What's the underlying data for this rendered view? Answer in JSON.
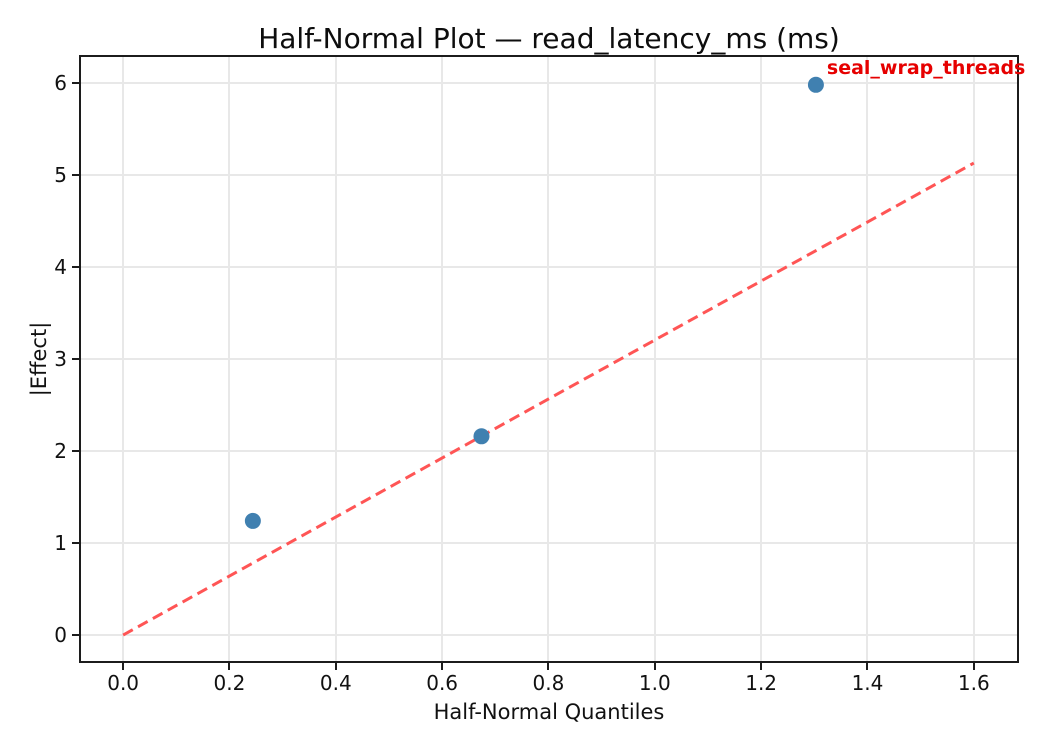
{
  "chart_data": {
    "type": "scatter",
    "title": "Half-Normal Plot — read_latency_ms (ms)",
    "xlabel": "Half-Normal Quantiles",
    "ylabel": "|Effect|",
    "xlim": [
      -0.083,
      1.685
    ],
    "ylim": [
      -0.304,
      6.304
    ],
    "grid": true,
    "legend": "none",
    "x_ticks": {
      "values": [
        0.0,
        0.2,
        0.4,
        0.6,
        0.8,
        1.0,
        1.2,
        1.4,
        1.6
      ],
      "labels": [
        "0.0",
        "0.2",
        "0.4",
        "0.6",
        "0.8",
        "1.0",
        "1.2",
        "1.4",
        "1.6"
      ]
    },
    "y_ticks": {
      "values": [
        0,
        1,
        2,
        3,
        4,
        5,
        6
      ],
      "labels": [
        "0",
        "1",
        "2",
        "3",
        "4",
        "5",
        "6"
      ]
    },
    "points": {
      "x": [
        0.244,
        0.674,
        1.303
      ],
      "y": [
        1.24,
        2.16,
        5.98
      ],
      "color": "#4080b0",
      "marker": "circle"
    },
    "reference_line": {
      "x": [
        0.0,
        1.6
      ],
      "y": [
        0.0,
        5.13
      ],
      "color": "#ff5555",
      "style": "dashed"
    },
    "annotation": {
      "text": "seal_wrap_threads",
      "x": 1.303,
      "y": 5.98,
      "color": "#e60000"
    },
    "colors": {
      "background": "#ffffff",
      "grid": "#e8e8e8",
      "spine": "#1c1c1c",
      "text": "#111111"
    }
  }
}
